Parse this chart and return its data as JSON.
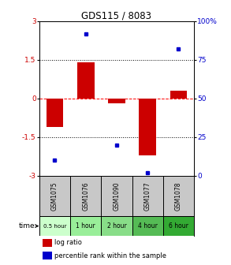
{
  "title": "GDS115 / 8083",
  "samples": [
    "GSM1075",
    "GSM1076",
    "GSM1090",
    "GSM1077",
    "GSM1078"
  ],
  "time_labels": [
    "0.5 hour",
    "1 hour",
    "2 hour",
    "4 hour",
    "6 hour"
  ],
  "time_colors": [
    "#ccffcc",
    "#99ee99",
    "#88dd88",
    "#55bb55",
    "#33aa33"
  ],
  "log_ratios": [
    -1.1,
    1.4,
    -0.2,
    -2.2,
    0.3
  ],
  "percentile_ranks": [
    10,
    92,
    20,
    2,
    82
  ],
  "bar_color": "#cc0000",
  "dot_color": "#0000cc",
  "ylim_left": [
    -3,
    3
  ],
  "ylim_right": [
    0,
    100
  ],
  "yticks_left": [
    -3,
    -1.5,
    0,
    1.5,
    3
  ],
  "yticks_right": [
    0,
    25,
    50,
    75,
    100
  ],
  "ytick_labels_left": [
    "-3",
    "-1.5",
    "0",
    "1.5",
    "3"
  ],
  "ytick_labels_right": [
    "0",
    "25",
    "50",
    "75",
    "100%"
  ],
  "hlines": [
    -1.5,
    0,
    1.5
  ],
  "hline_styles": [
    "dotted",
    "dashed",
    "dotted"
  ],
  "hline_colors": [
    "black",
    "red",
    "black"
  ],
  "legend_log_ratio": "log ratio",
  "legend_percentile": "percentile rank within the sample",
  "sample_bg_color": "#c8c8c8",
  "fig_bg": "#ffffff"
}
